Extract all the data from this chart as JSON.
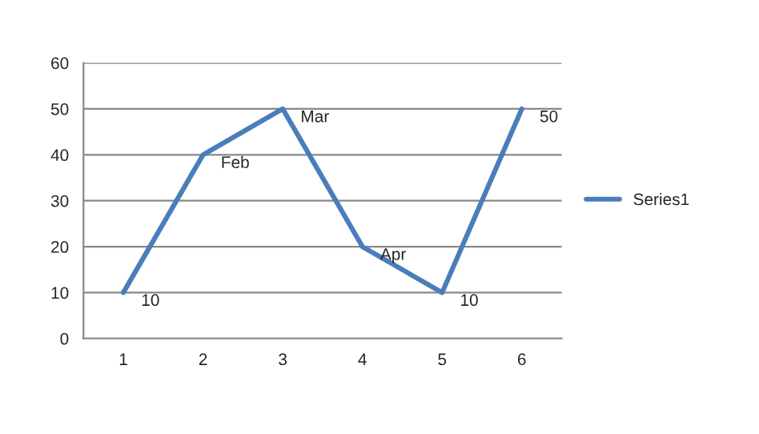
{
  "chart_data": {
    "type": "line",
    "categories": [
      "1",
      "2",
      "3",
      "4",
      "5",
      "6"
    ],
    "series": [
      {
        "name": "Series1",
        "color": "#4a7ebb",
        "values": [
          10,
          40,
          50,
          20,
          10,
          50
        ],
        "value_labels": [
          "10",
          "Feb",
          "Mar",
          "Apr",
          "10",
          "50"
        ]
      }
    ],
    "ylim": [
      0,
      60
    ],
    "yticks": [
      0,
      10,
      20,
      30,
      40,
      50,
      60
    ],
    "grid": "y",
    "legend": "right",
    "marker": "none",
    "line_style": "solid"
  }
}
